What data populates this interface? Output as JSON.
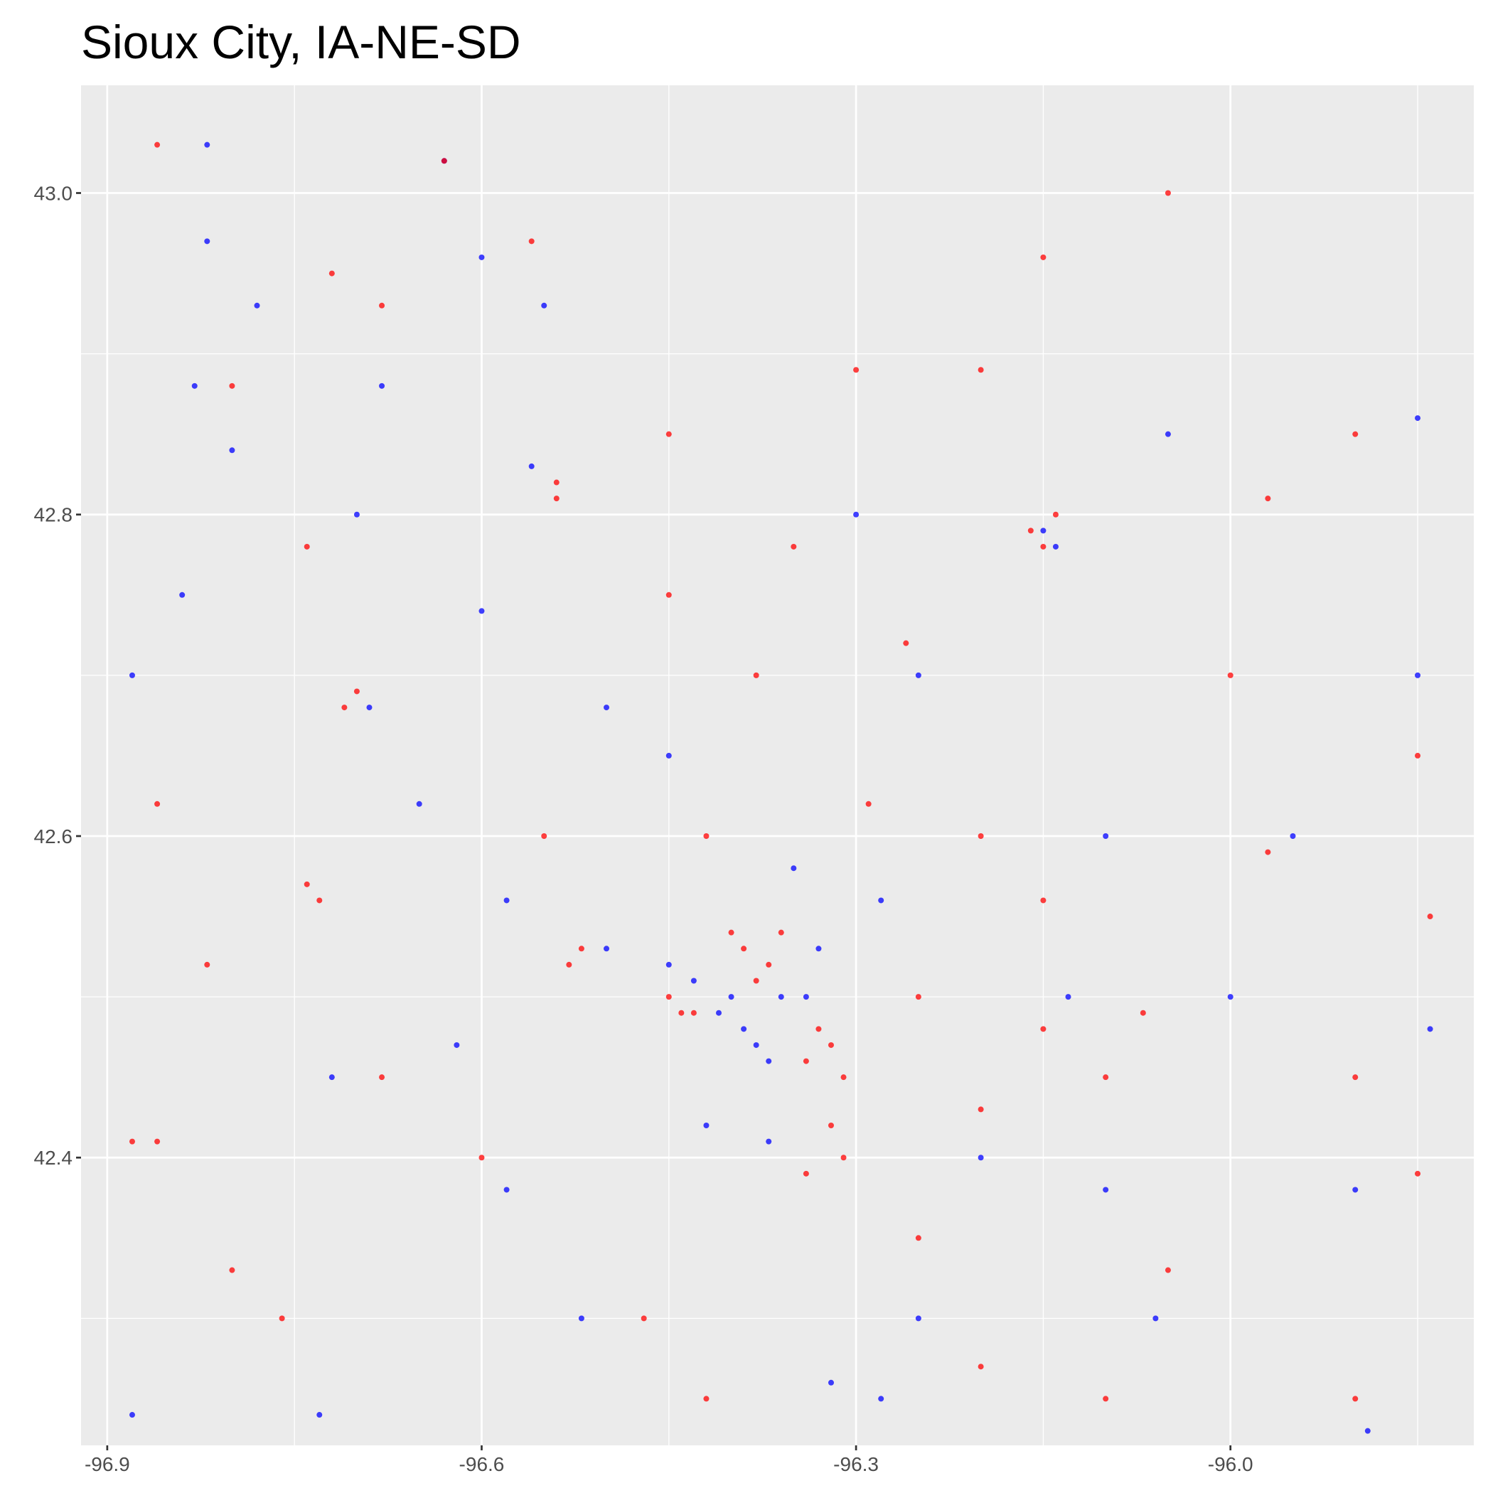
{
  "chart_data": {
    "type": "scatter",
    "title": "Sioux City, IA-NE-SD",
    "xlim": [
      -96.921,
      -95.805
    ],
    "ylim": [
      42.221,
      43.067
    ],
    "xticks": [
      -96.9,
      -96.6,
      -96.3,
      {
        "value": -96,
        "label": "-96.0"
      }
    ],
    "yticks": [
      42.4,
      42.6,
      42.8,
      {
        "value": 43,
        "label": "43.0"
      }
    ],
    "grid": true,
    "series": [
      {
        "color": "#0000ff",
        "x": [
          -96.63,
          -96.82,
          -96.82,
          -96.78,
          -96.6,
          -96.55,
          -96.83,
          -96.8,
          -96.84,
          -96.88,
          -96.69,
          -96.6,
          -96.56,
          -96.41,
          -96.4,
          -96.39,
          -96.38,
          -96.37,
          -96.36,
          -96.43,
          -96.45,
          -96.5,
          -96.37,
          -96.34,
          -96.33,
          -96.35,
          -96.15,
          -96.14,
          -96.25,
          -96.1,
          -96.0,
          -95.84,
          -95.85,
          -95.85,
          -96.05,
          -96.3,
          -96.5,
          -96.58,
          -96.62,
          -96.58,
          -96.52,
          -96.32,
          -96.28,
          -96.06,
          -95.89,
          -96.88,
          -96.73,
          -96.65,
          -96.72,
          -96.2,
          -96.1,
          -96.28,
          -96.45,
          -96.68,
          -96.7,
          -96.42,
          -96.25,
          -96.13,
          -95.95,
          -95.9
        ],
        "values": [
          43.02,
          43.03,
          42.97,
          42.93,
          42.96,
          42.93,
          42.88,
          42.84,
          42.75,
          42.7,
          42.68,
          42.74,
          42.83,
          42.49,
          42.5,
          42.48,
          42.47,
          42.46,
          42.5,
          42.51,
          42.52,
          42.53,
          42.41,
          42.5,
          42.53,
          42.58,
          42.79,
          42.78,
          42.7,
          42.6,
          42.5,
          42.48,
          42.7,
          42.86,
          42.85,
          42.8,
          42.68,
          42.56,
          42.47,
          42.38,
          42.3,
          42.26,
          42.25,
          42.3,
          42.23,
          42.24,
          42.24,
          42.62,
          42.45,
          42.4,
          42.38,
          42.56,
          42.65,
          42.88,
          42.8,
          42.42,
          42.3,
          42.5,
          42.6,
          42.38
        ]
      },
      {
        "color": "#ff0000",
        "x": [
          -96.63,
          -96.86,
          -96.72,
          -96.68,
          -96.56,
          -96.15,
          -96.05,
          -96.54,
          -96.54,
          -96.16,
          -96.15,
          -96.14,
          -95.97,
          -96.26,
          -96.38,
          -96.45,
          -96.3,
          -96.2,
          -95.9,
          -95.85,
          -96.71,
          -96.7,
          -96.74,
          -96.73,
          -96.88,
          -96.86,
          -96.76,
          -96.45,
          -96.44,
          -96.43,
          -96.52,
          -96.53,
          -96.4,
          -96.39,
          -96.37,
          -96.38,
          -96.36,
          -96.33,
          -96.32,
          -96.34,
          -96.31,
          -96.32,
          -96.31,
          -96.34,
          -96.29,
          -96.15,
          -96.07,
          -95.97,
          -95.84,
          -95.85,
          -96.2,
          -96.1,
          -96.47,
          -96.86,
          -96.82,
          -96.68,
          -96.6,
          -96.25,
          -96.05,
          -95.9,
          -96.55,
          -96.42,
          -96.2,
          -96.0,
          -95.9,
          -96.25,
          -96.15,
          -96.35,
          -96.45,
          -96.8,
          -96.74,
          -96.8,
          -96.42,
          -96.2,
          -96.1
        ],
        "values": [
          43.02,
          43.03,
          42.95,
          42.93,
          42.97,
          42.96,
          43.0,
          42.82,
          42.81,
          42.79,
          42.78,
          42.8,
          42.81,
          42.72,
          42.7,
          42.75,
          42.89,
          42.89,
          42.85,
          42.65,
          42.68,
          42.69,
          42.57,
          42.56,
          42.41,
          42.41,
          42.3,
          42.5,
          42.49,
          42.49,
          42.53,
          42.52,
          42.54,
          42.53,
          42.52,
          42.51,
          42.54,
          42.48,
          42.47,
          42.46,
          42.45,
          42.42,
          42.4,
          42.39,
          42.62,
          42.48,
          42.49,
          42.59,
          42.55,
          42.39,
          42.43,
          42.45,
          42.3,
          42.62,
          42.52,
          42.45,
          42.4,
          42.35,
          42.33,
          42.25,
          42.6,
          42.6,
          42.6,
          42.7,
          42.45,
          42.5,
          42.56,
          42.78,
          42.85,
          42.88,
          42.78,
          42.33,
          42.25,
          42.27,
          42.25
        ]
      }
    ]
  }
}
